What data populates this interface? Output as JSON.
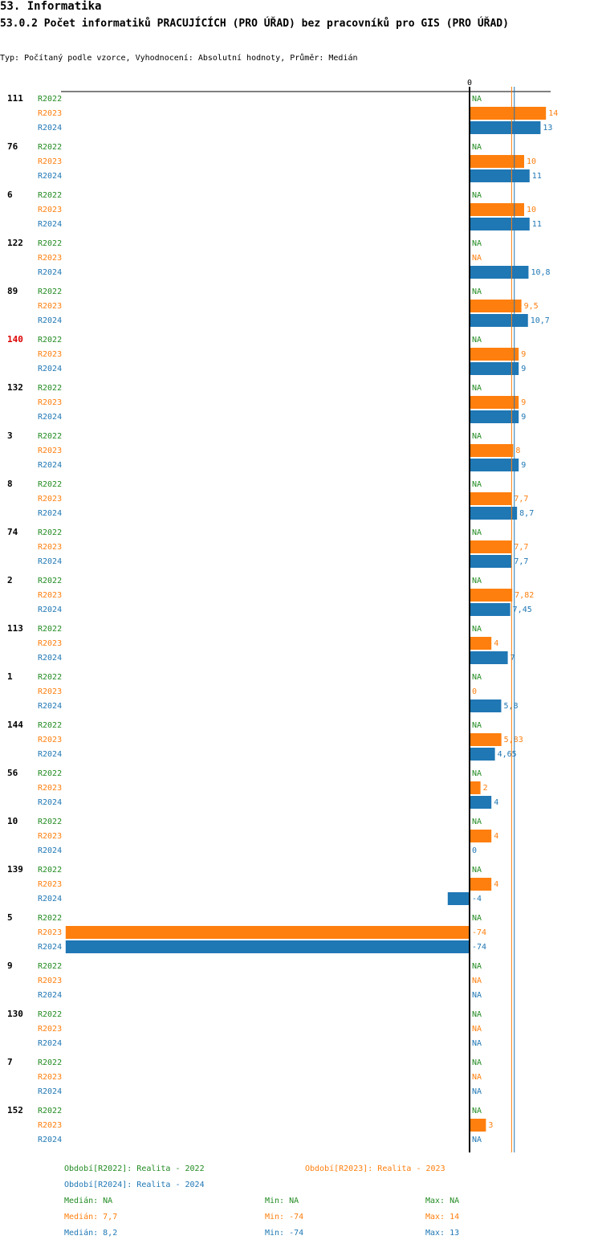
{
  "header": {
    "title": "53. Informatika",
    "subtitle": "53.0.2 Počet informatiků PRACUJÍCÍCH (PRO ÚŘAD) bez pracovníků pro GIS (PRO ÚŘAD)",
    "type_line": "Typ: Počítaný podle vzorce, Vyhodnocení: Absolutní hodnoty, Průměr: Medián"
  },
  "colors": {
    "R2022": "#228b22",
    "R2023": "#ff7f0e",
    "R2024": "#1f77b4",
    "highlight": "#dd0000",
    "axis": "#000000"
  },
  "chart_data": {
    "type": "bar",
    "orientation": "horizontal",
    "axis_zero_label": "0",
    "series_names": [
      "R2022",
      "R2023",
      "R2024"
    ],
    "groups": [
      {
        "label": "111",
        "highlight": false,
        "values": [
          null,
          14,
          13
        ],
        "labels": [
          "NA",
          "14",
          "13"
        ]
      },
      {
        "label": "76",
        "highlight": false,
        "values": [
          null,
          10,
          11
        ],
        "labels": [
          "NA",
          "10",
          "11"
        ]
      },
      {
        "label": "6",
        "highlight": false,
        "values": [
          null,
          10,
          11
        ],
        "labels": [
          "NA",
          "10",
          "11"
        ]
      },
      {
        "label": "122",
        "highlight": false,
        "values": [
          null,
          null,
          10.8
        ],
        "labels": [
          "NA",
          "NA",
          "10,8"
        ]
      },
      {
        "label": "89",
        "highlight": false,
        "values": [
          null,
          9.5,
          10.7
        ],
        "labels": [
          "NA",
          "9,5",
          "10,7"
        ]
      },
      {
        "label": "140",
        "highlight": true,
        "values": [
          null,
          9,
          9
        ],
        "labels": [
          "NA",
          "9",
          "9"
        ]
      },
      {
        "label": "132",
        "highlight": false,
        "values": [
          null,
          9,
          9
        ],
        "labels": [
          "NA",
          "9",
          "9"
        ]
      },
      {
        "label": "3",
        "highlight": false,
        "values": [
          null,
          8,
          9
        ],
        "labels": [
          "NA",
          "8",
          "9"
        ]
      },
      {
        "label": "8",
        "highlight": false,
        "values": [
          null,
          7.7,
          8.7
        ],
        "labels": [
          "NA",
          "7,7",
          "8,7"
        ]
      },
      {
        "label": "74",
        "highlight": false,
        "values": [
          null,
          7.7,
          7.7
        ],
        "labels": [
          "NA",
          "7,7",
          "7,7"
        ]
      },
      {
        "label": "2",
        "highlight": false,
        "values": [
          null,
          7.82,
          7.45
        ],
        "labels": [
          "NA",
          "7,82",
          "7,45"
        ]
      },
      {
        "label": "113",
        "highlight": false,
        "values": [
          null,
          4,
          7
        ],
        "labels": [
          "NA",
          "4",
          "7"
        ]
      },
      {
        "label": "1",
        "highlight": false,
        "values": [
          null,
          0,
          5.8
        ],
        "labels": [
          "NA",
          "0",
          "5,8"
        ]
      },
      {
        "label": "144",
        "highlight": false,
        "values": [
          null,
          5.83,
          4.65
        ],
        "labels": [
          "NA",
          "5,83",
          "4,65"
        ]
      },
      {
        "label": "56",
        "highlight": false,
        "values": [
          null,
          2,
          4
        ],
        "labels": [
          "NA",
          "2",
          "4"
        ]
      },
      {
        "label": "10",
        "highlight": false,
        "values": [
          null,
          4,
          0
        ],
        "labels": [
          "NA",
          "4",
          "0"
        ]
      },
      {
        "label": "139",
        "highlight": false,
        "values": [
          null,
          4,
          -4
        ],
        "labels": [
          "NA",
          "4",
          "-4"
        ]
      },
      {
        "label": "5",
        "highlight": false,
        "values": [
          null,
          -74,
          -74
        ],
        "labels": [
          "NA",
          "-74",
          "-74"
        ]
      },
      {
        "label": "9",
        "highlight": false,
        "values": [
          null,
          null,
          null
        ],
        "labels": [
          "NA",
          "NA",
          "NA"
        ]
      },
      {
        "label": "130",
        "highlight": false,
        "values": [
          null,
          null,
          null
        ],
        "labels": [
          "NA",
          "NA",
          "NA"
        ]
      },
      {
        "label": "7",
        "highlight": false,
        "values": [
          null,
          null,
          null
        ],
        "labels": [
          "NA",
          "NA",
          "NA"
        ]
      },
      {
        "label": "152",
        "highlight": false,
        "values": [
          null,
          3,
          null
        ],
        "labels": [
          "NA",
          "3",
          "NA"
        ]
      }
    ],
    "medians": {
      "R2023": 7.7,
      "R2024": 8.2
    },
    "xlim": [
      -74,
      14
    ]
  },
  "legend": {
    "periods": [
      "Období[R2022]: Realita - 2022",
      "Období[R2023]: Realita - 2023",
      "Období[R2024]: Realita - 2024"
    ],
    "stats": [
      {
        "median": "Medián: NA",
        "min": "Min: NA",
        "max": "Max: NA"
      },
      {
        "median": "Medián: 7,7",
        "min": "Min: -74",
        "max": "Max: 14"
      },
      {
        "median": "Medián: 8,2",
        "min": "Min: -74",
        "max": "Max: 13"
      }
    ]
  }
}
